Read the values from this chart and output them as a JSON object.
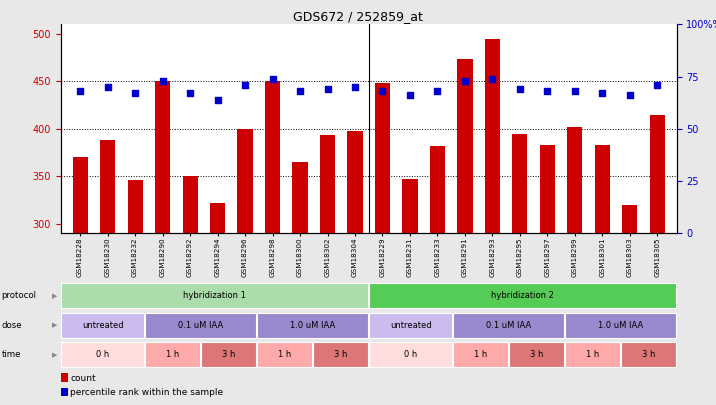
{
  "title": "GDS672 / 252859_at",
  "samples": [
    "GSM18228",
    "GSM18230",
    "GSM18232",
    "GSM18290",
    "GSM18292",
    "GSM18294",
    "GSM18296",
    "GSM18298",
    "GSM18300",
    "GSM18302",
    "GSM18304",
    "GSM18229",
    "GSM18231",
    "GSM18233",
    "GSM18291",
    "GSM18293",
    "GSM18295",
    "GSM18297",
    "GSM18299",
    "GSM18301",
    "GSM18303",
    "GSM18305"
  ],
  "counts": [
    370,
    388,
    346,
    450,
    350,
    322,
    400,
    450,
    365,
    393,
    398,
    448,
    347,
    382,
    473,
    494,
    395,
    383,
    402,
    383,
    320,
    415
  ],
  "percentiles": [
    68,
    70,
    67,
    73,
    67,
    64,
    71,
    74,
    68,
    69,
    70,
    68,
    66,
    68,
    73,
    74,
    69,
    68,
    68,
    67,
    66,
    71
  ],
  "ylim_left": [
    290,
    510
  ],
  "ylim_right": [
    0,
    100
  ],
  "yticks_left": [
    300,
    350,
    400,
    450,
    500
  ],
  "yticks_right": [
    0,
    25,
    50,
    75,
    100
  ],
  "bar_color": "#cc0000",
  "dot_color": "#0000cc",
  "bg_color": "#e8e8e8",
  "plot_bg": "#ffffff",
  "protocol_row": {
    "label": "protocol",
    "items": [
      {
        "text": "hybridization 1",
        "start": 0,
        "end": 11,
        "color": "#aaddaa"
      },
      {
        "text": "hybridization 2",
        "start": 11,
        "end": 22,
        "color": "#55cc55"
      }
    ]
  },
  "dose_row": {
    "label": "dose",
    "items": [
      {
        "text": "untreated",
        "start": 0,
        "end": 3,
        "color": "#ccbbee"
      },
      {
        "text": "0.1 uM IAA",
        "start": 3,
        "end": 7,
        "color": "#9988cc"
      },
      {
        "text": "1.0 uM IAA",
        "start": 7,
        "end": 11,
        "color": "#9988cc"
      },
      {
        "text": "untreated",
        "start": 11,
        "end": 14,
        "color": "#ccbbee"
      },
      {
        "text": "0.1 uM IAA",
        "start": 14,
        "end": 18,
        "color": "#9988cc"
      },
      {
        "text": "1.0 uM IAA",
        "start": 18,
        "end": 22,
        "color": "#9988cc"
      }
    ]
  },
  "time_row": {
    "label": "time",
    "items": [
      {
        "text": "0 h",
        "start": 0,
        "end": 3,
        "color": "#ffdddd"
      },
      {
        "text": "1 h",
        "start": 3,
        "end": 5,
        "color": "#ffaaaa"
      },
      {
        "text": "3 h",
        "start": 5,
        "end": 7,
        "color": "#dd7777"
      },
      {
        "text": "1 h",
        "start": 7,
        "end": 9,
        "color": "#ffaaaa"
      },
      {
        "text": "3 h",
        "start": 9,
        "end": 11,
        "color": "#dd7777"
      },
      {
        "text": "0 h",
        "start": 11,
        "end": 14,
        "color": "#ffdddd"
      },
      {
        "text": "1 h",
        "start": 14,
        "end": 16,
        "color": "#ffaaaa"
      },
      {
        "text": "3 h",
        "start": 16,
        "end": 18,
        "color": "#dd7777"
      },
      {
        "text": "1 h",
        "start": 18,
        "end": 20,
        "color": "#ffaaaa"
      },
      {
        "text": "3 h",
        "start": 20,
        "end": 22,
        "color": "#dd7777"
      }
    ]
  },
  "legend": [
    {
      "label": "count",
      "color": "#cc0000"
    },
    {
      "label": "percentile rank within the sample",
      "color": "#0000cc"
    }
  ]
}
